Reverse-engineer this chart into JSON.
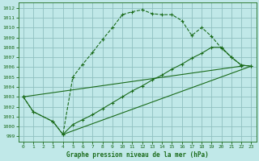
{
  "title": "Graphe pression niveau de la mer (hPa)",
  "bg_color": "#c0e8e8",
  "grid_color": "#90c0c0",
  "line_color": "#1a6b1a",
  "xlim": [
    -0.5,
    23.5
  ],
  "ylim": [
    998.5,
    1012.5
  ],
  "xticks": [
    0,
    1,
    2,
    3,
    4,
    5,
    6,
    7,
    8,
    9,
    10,
    11,
    12,
    13,
    14,
    15,
    16,
    17,
    18,
    19,
    20,
    21,
    22,
    23
  ],
  "yticks": [
    999,
    1000,
    1001,
    1002,
    1003,
    1004,
    1005,
    1006,
    1007,
    1008,
    1009,
    1010,
    1011,
    1012
  ],
  "line1_x": [
    0,
    1,
    3,
    4,
    5,
    6,
    7,
    8,
    9,
    10,
    11,
    12,
    13,
    14,
    15,
    16,
    17,
    18,
    19,
    20,
    21,
    22,
    23
  ],
  "line1_y": [
    1003,
    1001.5,
    1000.5,
    999.2,
    1005.0,
    1006.3,
    1007.5,
    1008.8,
    1010.0,
    1011.3,
    1011.6,
    1011.8,
    1011.4,
    1011.3,
    1011.3,
    1010.7,
    1009.2,
    1010.0,
    1009.1,
    1007.9,
    1007.0,
    1006.2,
    1006.1
  ],
  "line2_x": [
    0,
    1,
    3,
    4,
    5,
    6,
    7,
    8,
    9,
    10,
    11,
    12,
    13,
    14,
    15,
    16,
    17,
    18,
    19,
    20,
    21,
    22,
    23
  ],
  "line2_y": [
    1003,
    1001.5,
    1000.5,
    999.2,
    1000.2,
    1000.7,
    1001.2,
    1001.8,
    1002.4,
    1003.0,
    1003.6,
    1004.1,
    1004.7,
    1005.2,
    1005.8,
    1006.3,
    1006.9,
    1007.4,
    1008.0,
    1008.0,
    1007.0,
    1006.2,
    1006.1
  ],
  "line3_x": [
    0,
    22
  ],
  "line3_y": [
    1003,
    1006.1
  ],
  "line4_x": [
    4,
    23
  ],
  "line4_y": [
    999.2,
    1006.1
  ]
}
